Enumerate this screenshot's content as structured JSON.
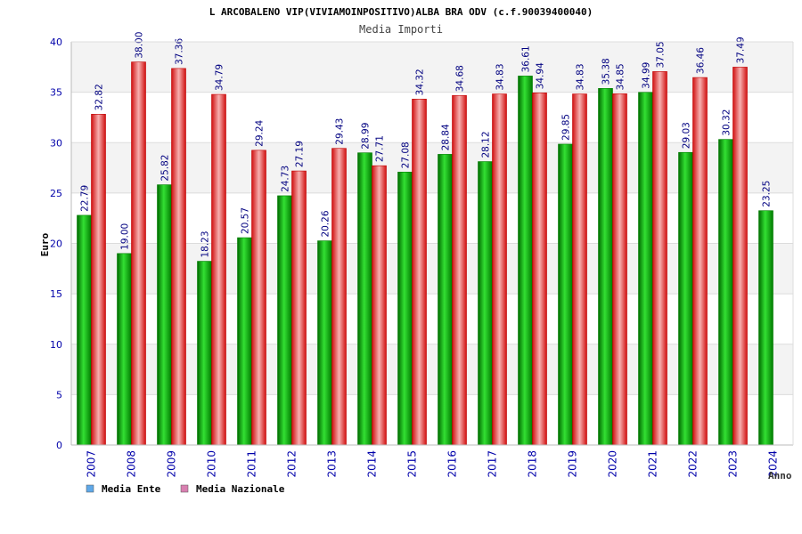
{
  "chart_data": {
    "type": "bar",
    "title": "L ARCOBALENO VIP(VIVIAMOINPOSITIVO)ALBA BRA ODV (c.f.90039400040)",
    "subtitle": "Media Importi",
    "xlabel": "Anno",
    "ylabel": "Euro",
    "ylim": [
      0,
      40
    ],
    "yticks": [
      0,
      5,
      10,
      15,
      20,
      25,
      30,
      35,
      40
    ],
    "grid": true,
    "legend_position": "bottom-left",
    "categories": [
      "2007",
      "2008",
      "2009",
      "2010",
      "2011",
      "2012",
      "2013",
      "2014",
      "2015",
      "2016",
      "2017",
      "2018",
      "2019",
      "2020",
      "2021",
      "2022",
      "2023",
      "2024"
    ],
    "series": [
      {
        "name": "Media Ente",
        "color": "#00c000",
        "legend_color": "#5fa8e8",
        "values": [
          22.79,
          19.0,
          25.82,
          18.23,
          20.57,
          24.73,
          20.26,
          28.99,
          27.08,
          28.84,
          28.12,
          36.61,
          29.85,
          35.38,
          34.99,
          29.03,
          30.32,
          23.25
        ],
        "labels": [
          "22.79",
          "19.00",
          "25.82",
          "18.23",
          "20.57",
          "24.73",
          "20.26",
          "28.99",
          "27.08",
          "28.84",
          "28.12",
          "36.61",
          "29.85",
          "35.38",
          "34.99",
          "29.03",
          "30.32",
          "23.25"
        ]
      },
      {
        "name": "Media Nazionale",
        "color": "#e82020",
        "legend_color": "#d87fb0",
        "values": [
          32.82,
          38.0,
          37.36,
          34.79,
          29.24,
          27.19,
          29.43,
          27.71,
          34.32,
          34.68,
          34.83,
          34.94,
          34.83,
          34.85,
          37.05,
          36.46,
          37.49,
          null
        ],
        "labels": [
          "32.82",
          "38.00",
          "37.36",
          "34.79",
          "29.24",
          "27.19",
          "29.43",
          "27.71",
          "34.32",
          "34.68",
          "34.83",
          "34.94",
          "34.83",
          "34.85",
          "37.05",
          "36.46",
          "37.49",
          ""
        ]
      }
    ]
  }
}
